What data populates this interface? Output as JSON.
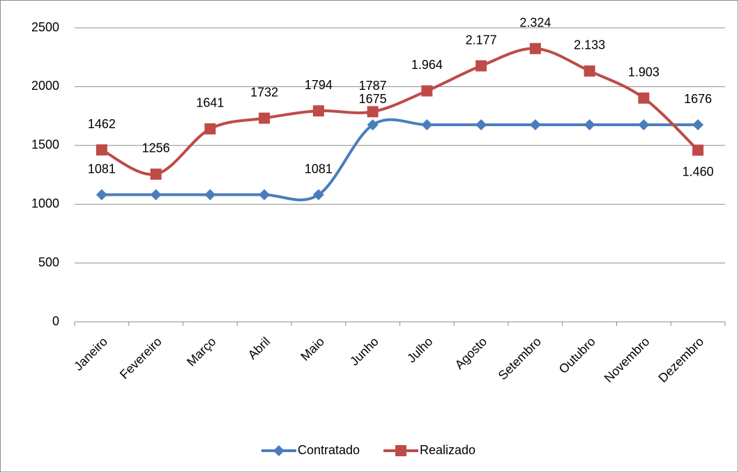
{
  "chart_data": {
    "type": "line",
    "categories": [
      "Janeiro",
      "Fevereiro",
      "Março",
      "Abril",
      "Maio",
      "Junho",
      "Julho",
      "Agosto",
      "Setembro",
      "Outubro",
      "Novembro",
      "Dezembro"
    ],
    "series": [
      {
        "name": "Contratado",
        "color": "#4a7ebb",
        "marker": "diamond",
        "values": [
          1081,
          1081,
          1081,
          1081,
          1081,
          1675,
          1676,
          1676,
          1676,
          1676,
          1676,
          1676
        ],
        "value_labels": [
          "1081",
          null,
          null,
          null,
          "1081",
          "1675",
          null,
          null,
          null,
          null,
          null,
          "1676"
        ]
      },
      {
        "name": "Realizado",
        "color": "#be4b48",
        "marker": "square",
        "values": [
          1462,
          1256,
          1641,
          1732,
          1794,
          1787,
          1964,
          2177,
          2324,
          2133,
          1903,
          1460
        ],
        "value_labels": [
          "1462",
          "1256",
          "1641",
          "1732",
          "1794",
          "1787",
          "1.964",
          "2.177",
          "2.324",
          "2.133",
          "1.903",
          "1.460"
        ]
      }
    ],
    "ylim": [
      0,
      2500
    ],
    "yticks": [
      0,
      500,
      1000,
      1500,
      2000,
      2500
    ],
    "grid": true,
    "smooth": true,
    "legend": "bottom"
  }
}
